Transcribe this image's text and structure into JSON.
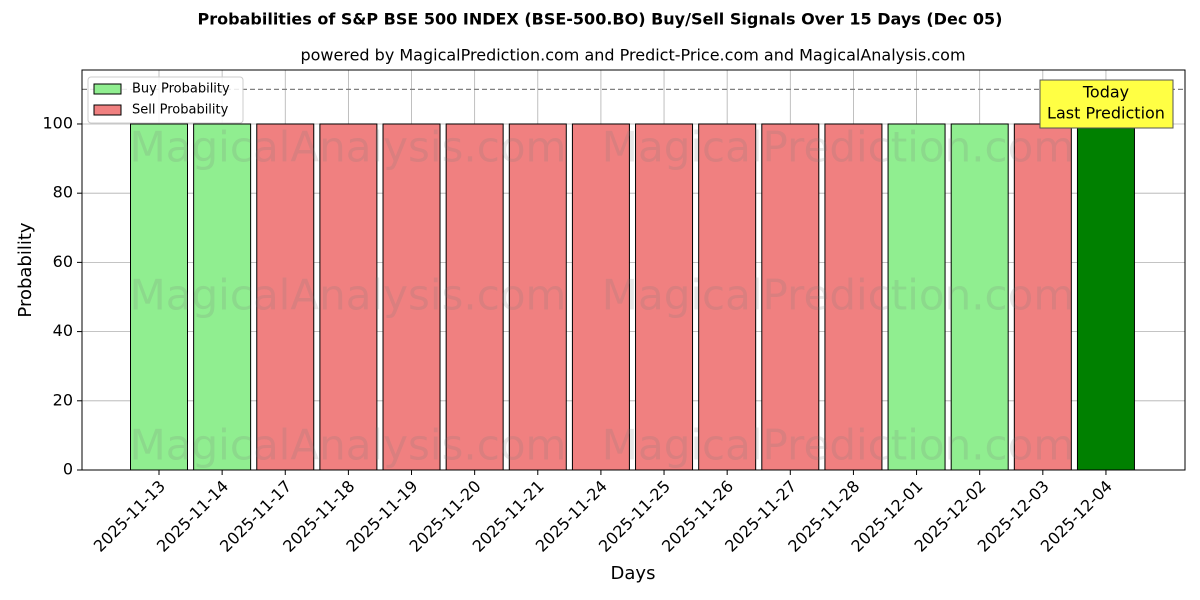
{
  "chart_data": {
    "type": "bar",
    "title": "Probabilities of S&P BSE 500 INDEX (BSE-500.BO) Buy/Sell Signals Over 15 Days (Dec 05)",
    "subtitle": "powered by MagicalPrediction.com and Predict-Price.com and MagicalAnalysis.com",
    "x_label": "Days",
    "y_label": "Probability",
    "categories": [
      "2025-11-13",
      "2025-11-14",
      "2025-11-17",
      "2025-11-18",
      "2025-11-19",
      "2025-11-20",
      "2025-11-21",
      "2025-11-24",
      "2025-11-25",
      "2025-11-26",
      "2025-11-27",
      "2025-11-28",
      "2025-12-01",
      "2025-12-02",
      "2025-12-03",
      "2025-12-04"
    ],
    "series": [
      {
        "name": "Buy Probability",
        "color": "#90ee90",
        "values": [
          100,
          100,
          null,
          null,
          null,
          null,
          null,
          null,
          null,
          null,
          null,
          null,
          100,
          100,
          null,
          100
        ]
      },
      {
        "name": "Sell Probability",
        "color": "#f08080",
        "values": [
          null,
          null,
          100,
          100,
          100,
          100,
          100,
          100,
          100,
          100,
          100,
          100,
          null,
          null,
          100,
          null
        ]
      }
    ],
    "today_color": "#008000",
    "ylim": [
      0,
      115.6
    ],
    "yticks": [
      0,
      20,
      40,
      60,
      80,
      100
    ],
    "hline": 110,
    "grid": true,
    "legend": "upper-left",
    "annotation": [
      "Today",
      "Last Prediction"
    ],
    "watermarks": [
      "MagicalAnalysis.com",
      "MagicalPrediction.com"
    ]
  }
}
